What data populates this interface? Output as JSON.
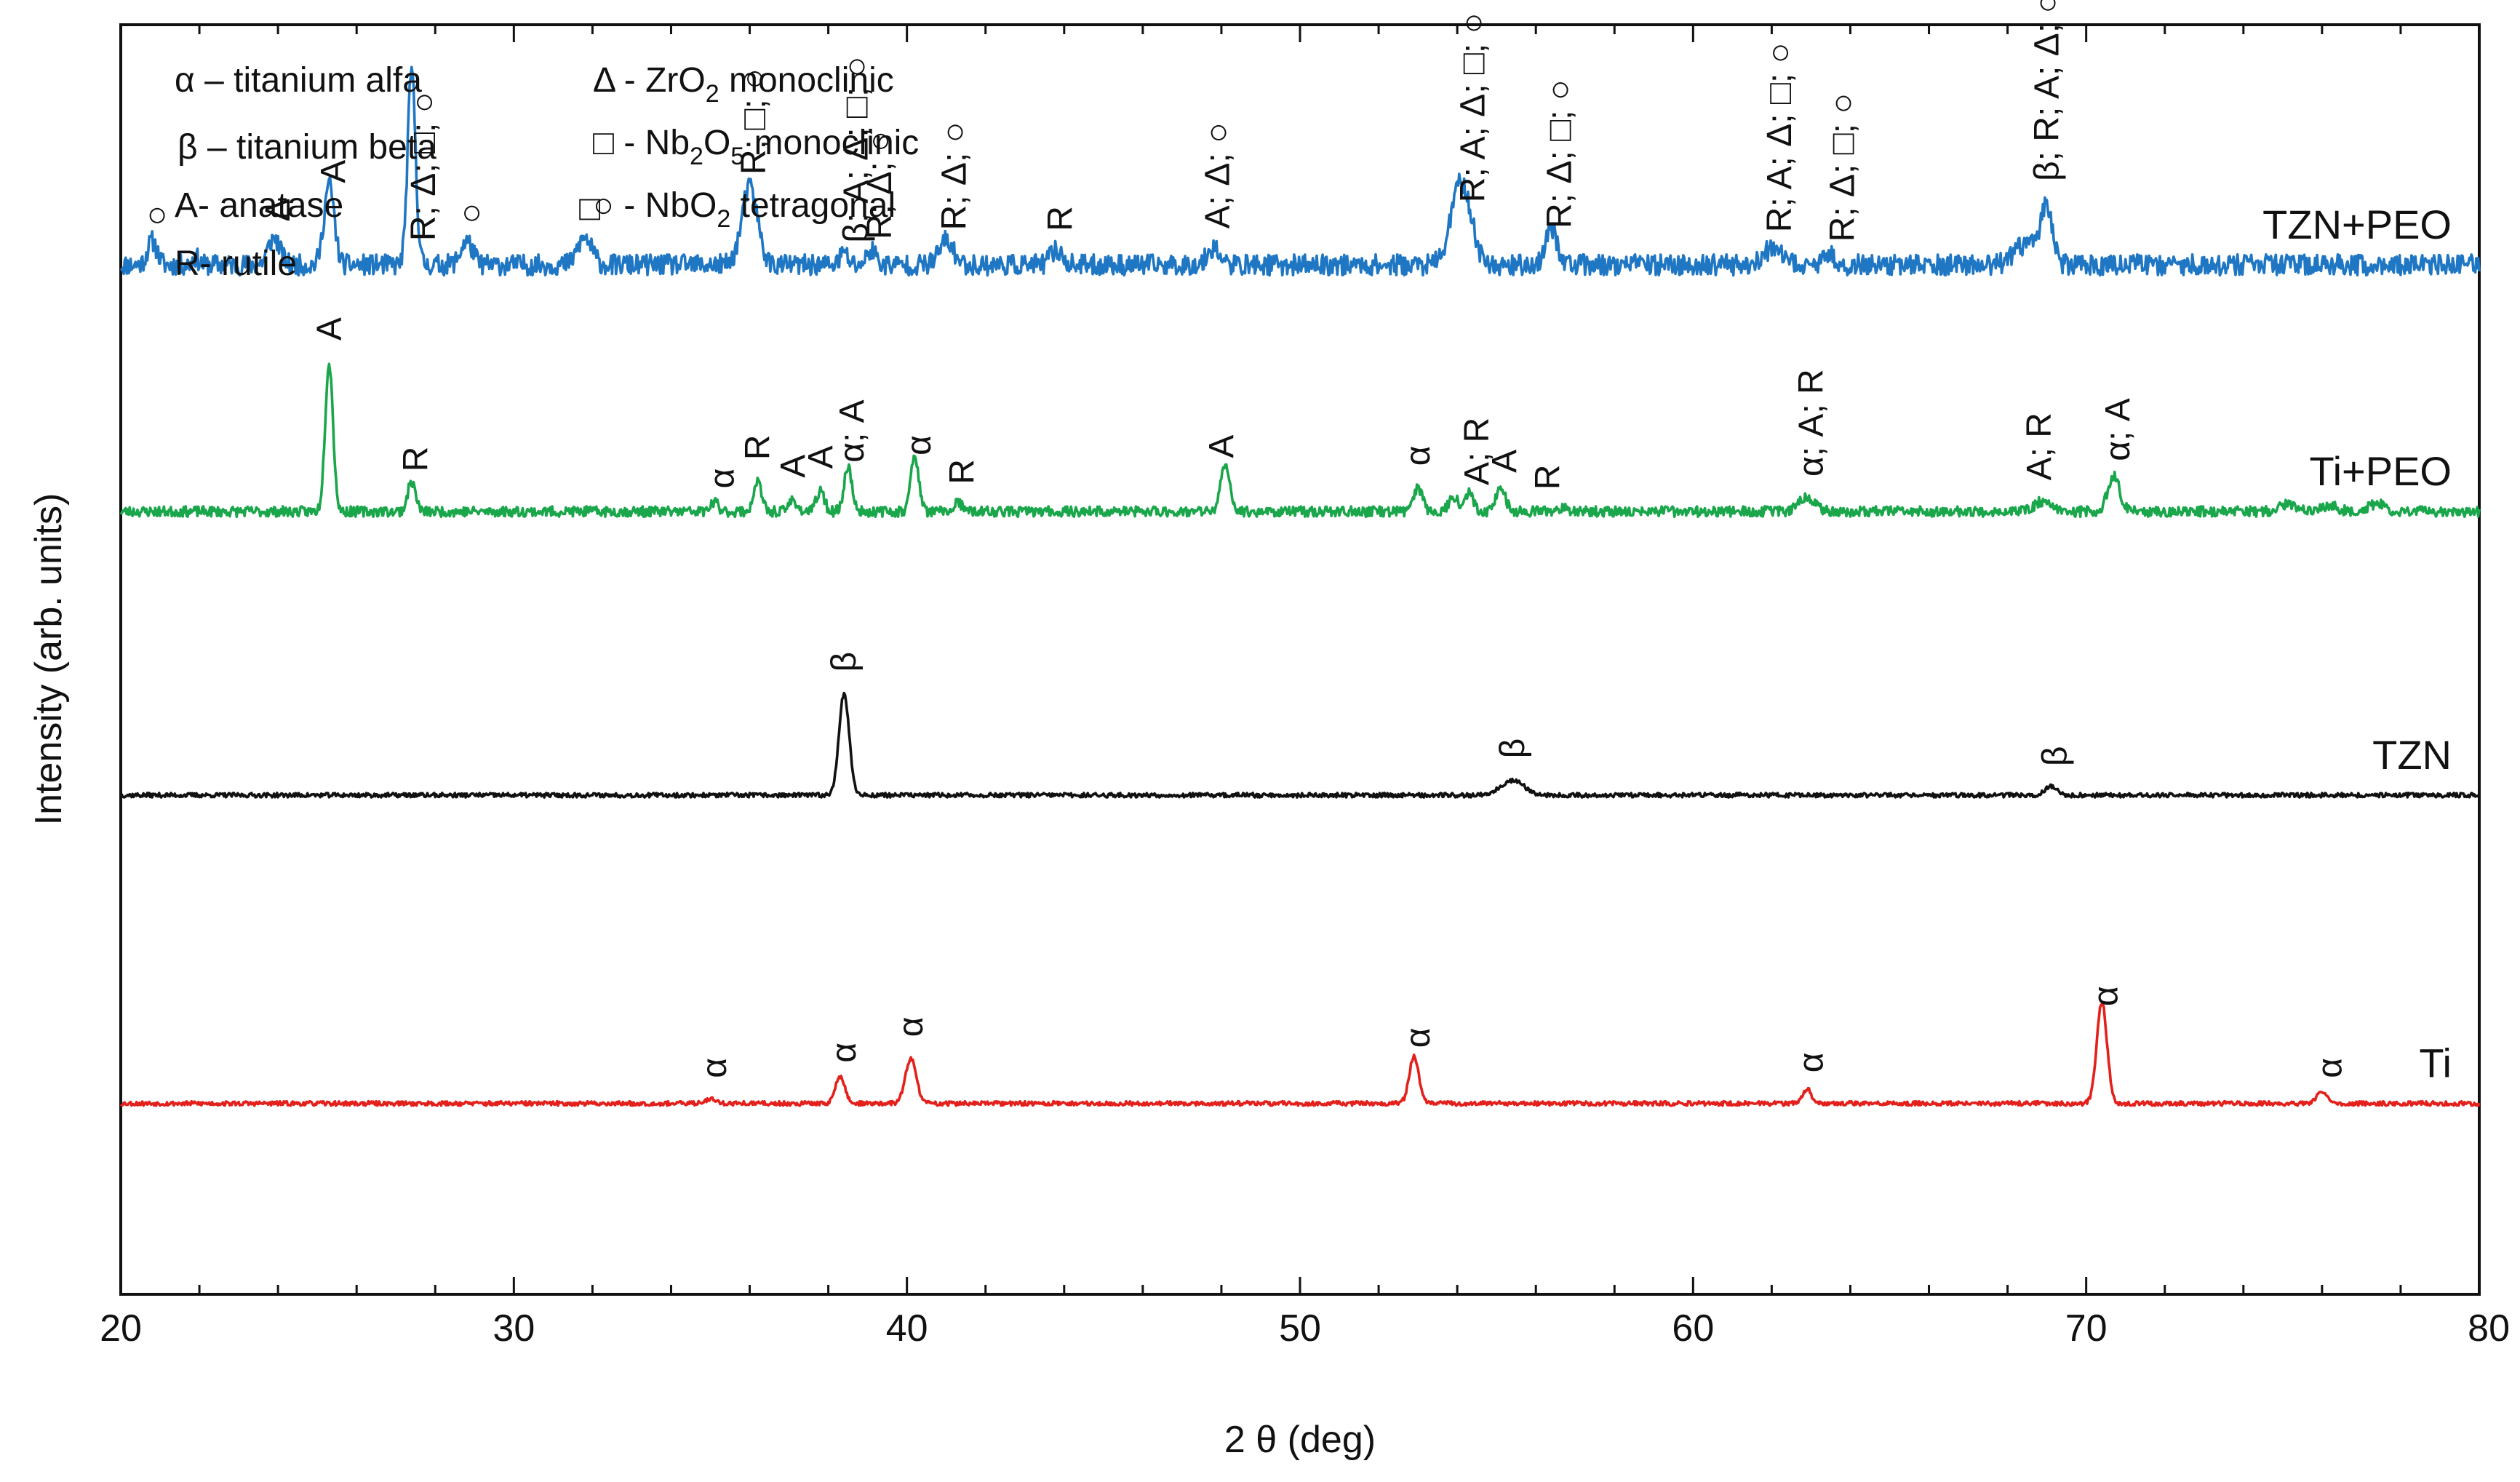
{
  "chart_data": {
    "type": "line",
    "title": "",
    "xlabel": "2 θ (deg)",
    "ylabel": "Intensity (arb. units)",
    "xlim": [
      20,
      80
    ],
    "x_ticks": [
      "20",
      "30",
      "40",
      "50",
      "60",
      "70",
      "80"
    ],
    "x_minor_step": 2,
    "y_ticks": [],
    "legend": {
      "left": [
        {
          "id": "alpha",
          "text": "α – titanium alfa"
        },
        {
          "id": "beta",
          "text": "β – titanium beta"
        },
        {
          "id": "anatase",
          "text": "A- anatase"
        },
        {
          "id": "rutile",
          "text": "R- rutile"
        }
      ],
      "right": [
        {
          "id": "zro2",
          "sym": "Δ",
          "pre": " - ZrO",
          "sub": "2",
          "post": " monoclinic"
        },
        {
          "id": "nb2o5",
          "sym": "□",
          "pre": " - Nb",
          "sub": "2",
          "mid": "O",
          "sub2": "5",
          "post": " monoclinic"
        },
        {
          "id": "nbo2",
          "sym": "○",
          "pre": " - NbO",
          "sub": "2",
          "post": " tetragonal"
        }
      ]
    },
    "series": [
      {
        "name": "TZN+PEO",
        "color": "#1f77c4",
        "baseline": 0.82,
        "noise": 0.7,
        "seed": 11,
        "peaks": [
          [
            20.8,
            0.8,
            0.12
          ],
          [
            21.9,
            0.25,
            0.08
          ],
          [
            23.9,
            0.9,
            0.15
          ],
          [
            25.3,
            2.7,
            0.13
          ],
          [
            27.4,
            6.5,
            0.1
          ],
          [
            28.8,
            0.8,
            0.15
          ],
          [
            31.8,
            0.9,
            0.18
          ],
          [
            36.0,
            2.6,
            0.2
          ],
          [
            38.4,
            0.4,
            0.1
          ],
          [
            39.1,
            0.5,
            0.12
          ],
          [
            41.0,
            0.8,
            0.18
          ],
          [
            43.8,
            0.5,
            0.15
          ],
          [
            47.8,
            0.6,
            0.15
          ],
          [
            54.1,
            2.8,
            0.25
          ],
          [
            56.4,
            1.2,
            0.15
          ],
          [
            62.0,
            0.5,
            0.25
          ],
          [
            63.5,
            0.3,
            0.15
          ],
          [
            68.5,
            0.7,
            0.3
          ],
          [
            69.0,
            1.9,
            0.15
          ]
        ],
        "annotations": [
          {
            "x": 20.9,
            "lines": [
              "○"
            ]
          },
          {
            "x": 24.0,
            "lines": [
              "Δ"
            ]
          },
          {
            "x": 25.4,
            "lines": [
              "A"
            ]
          },
          {
            "x": 27.7,
            "lines": [
              "R; Δ; □; ○"
            ]
          },
          {
            "x": 28.9,
            "lines": [
              "○"
            ]
          },
          {
            "x": 31.9,
            "lines": [
              "□"
            ]
          },
          {
            "x": 36.1,
            "lines": [
              "R; □; ○"
            ]
          },
          {
            "x": 38.7,
            "lines": [
              "β; A; Δ; □; ○"
            ]
          },
          {
            "x": 39.3,
            "lines": [
              "R; Δ; ○"
            ]
          },
          {
            "x": 41.2,
            "lines": [
              "R; Δ; ○"
            ]
          },
          {
            "x": 43.9,
            "lines": [
              "R"
            ]
          },
          {
            "x": 47.9,
            "lines": [
              "A; Δ; ○"
            ]
          },
          {
            "x": 54.4,
            "lines": [
              "R; A; Δ; □; ○"
            ]
          },
          {
            "x": 56.6,
            "lines": [
              "R; Δ; □; ○"
            ]
          },
          {
            "x": 62.2,
            "lines": [
              "R; A; Δ; □; ○"
            ]
          },
          {
            "x": 63.8,
            "lines": [
              "R; Δ; □; ○"
            ]
          },
          {
            "x": 69.0,
            "lines": [
              "β; R; A; Δ; ○"
            ]
          }
        ]
      },
      {
        "name": "Ti+PEO",
        "color": "#1aa64a",
        "baseline": 0.62,
        "noise": 0.35,
        "seed": 23,
        "peaks": [
          [
            25.3,
            5.0,
            0.1
          ],
          [
            27.4,
            1.0,
            0.1
          ],
          [
            35.1,
            0.3,
            0.1
          ],
          [
            36.2,
            1.0,
            0.1
          ],
          [
            37.1,
            0.4,
            0.1
          ],
          [
            37.8,
            0.7,
            0.1
          ],
          [
            38.5,
            1.5,
            0.1
          ],
          [
            40.2,
            1.9,
            0.1
          ],
          [
            41.3,
            0.3,
            0.1
          ],
          [
            48.1,
            1.5,
            0.12
          ],
          [
            53.0,
            0.8,
            0.12
          ],
          [
            53.9,
            0.5,
            0.12
          ],
          [
            54.3,
            0.6,
            0.12
          ],
          [
            55.1,
            0.8,
            0.12
          ],
          [
            56.7,
            0.15,
            0.12
          ],
          [
            62.9,
            0.5,
            0.2
          ],
          [
            68.9,
            0.35,
            0.2
          ],
          [
            70.7,
            1.2,
            0.15
          ],
          [
            75.1,
            0.25,
            0.2
          ],
          [
            76.2,
            0.2,
            0.2
          ],
          [
            77.4,
            0.25,
            0.2
          ]
        ],
        "annotations": [
          {
            "x": 25.3,
            "lines": [
              "A"
            ]
          },
          {
            "x": 27.5,
            "lines": [
              "R"
            ]
          },
          {
            "x": 35.3,
            "lines": [
              "α"
            ]
          },
          {
            "x": 36.2,
            "lines": [
              "R"
            ]
          },
          {
            "x": 37.1,
            "lines": [
              "A"
            ]
          },
          {
            "x": 37.8,
            "lines": [
              "A"
            ]
          },
          {
            "x": 38.6,
            "lines": [
              "α; A"
            ]
          },
          {
            "x": 40.3,
            "lines": [
              "α"
            ]
          },
          {
            "x": 41.4,
            "lines": [
              "R"
            ]
          },
          {
            "x": 48.0,
            "lines": [
              "A"
            ]
          },
          {
            "x": 53.0,
            "lines": [
              "α"
            ]
          },
          {
            "x": 54.5,
            "lines": [
              "A; R"
            ]
          },
          {
            "x": 55.2,
            "lines": [
              "A"
            ]
          },
          {
            "x": 56.3,
            "lines": [
              "R"
            ]
          },
          {
            "x": 63.0,
            "lines": [
              "α; A; R"
            ]
          },
          {
            "x": 68.8,
            "lines": [
              "A; R"
            ]
          },
          {
            "x": 70.8,
            "lines": [
              "α; A"
            ]
          }
        ]
      },
      {
        "name": "TZN",
        "color": "#111111",
        "baseline": 0.39,
        "noise": 0.15,
        "seed": 37,
        "peaks": [
          [
            38.4,
            3.4,
            0.13
          ],
          [
            55.4,
            0.5,
            0.3
          ],
          [
            69.1,
            0.3,
            0.15
          ]
        ],
        "annotations": [
          {
            "x": 38.4,
            "lines": [
              "β"
            ]
          },
          {
            "x": 55.4,
            "lines": [
              "β"
            ]
          },
          {
            "x": 69.2,
            "lines": [
              "β"
            ]
          }
        ]
      },
      {
        "name": "Ti",
        "color": "#e3201b",
        "baseline": 0.14,
        "noise": 0.15,
        "seed": 53,
        "peaks": [
          [
            35.0,
            0.15,
            0.15
          ],
          [
            38.3,
            0.9,
            0.12
          ],
          [
            40.1,
            1.5,
            0.14
          ],
          [
            52.9,
            1.6,
            0.12
          ],
          [
            62.9,
            0.5,
            0.1
          ],
          [
            70.4,
            3.4,
            0.13
          ],
          [
            76.0,
            0.4,
            0.13
          ]
        ],
        "annotations": [
          {
            "x": 35.1,
            "lines": [
              "α"
            ]
          },
          {
            "x": 38.4,
            "lines": [
              "α"
            ]
          },
          {
            "x": 40.1,
            "lines": [
              "α"
            ]
          },
          {
            "x": 53.0,
            "lines": [
              "α"
            ]
          },
          {
            "x": 63.0,
            "lines": [
              "α"
            ]
          },
          {
            "x": 70.5,
            "lines": [
              "α"
            ]
          },
          {
            "x": 76.2,
            "lines": [
              "α"
            ]
          }
        ]
      }
    ]
  }
}
